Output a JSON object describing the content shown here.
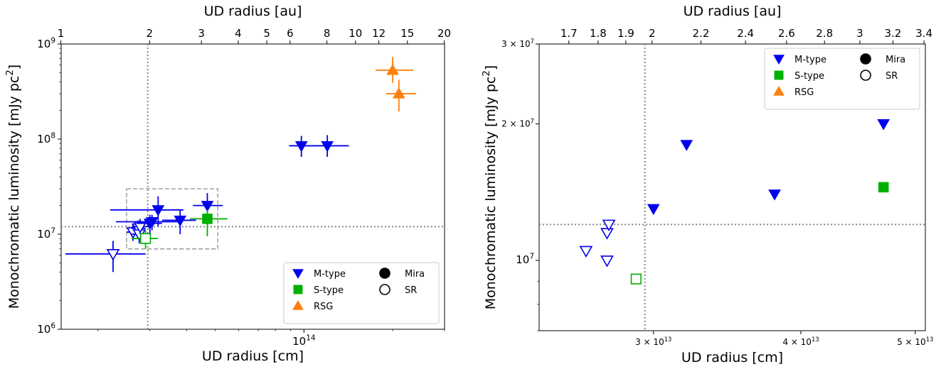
{
  "chart_data": [
    {
      "type": "scatter",
      "panel": "left",
      "xscale": "log",
      "yscale": "log",
      "xlabel": "UD radius [cm]",
      "ylabel": "Monochromatic luminosity [mJy pc",
      "ylabel_sup": "2",
      "ylabel_end": "]",
      "top_xlabel": "UD radius [au]",
      "xlim": [
        15000000000000.0,
        300000000000000.0
      ],
      "ylim": [
        1000000.0,
        1000000000.0
      ],
      "x_ticks": [
        {
          "value": 100000000000000.0,
          "base": "10",
          "exp": "14"
        }
      ],
      "y_ticks": [
        {
          "value": 1000000.0,
          "base": "10",
          "exp": "6"
        },
        {
          "value": 10000000.0,
          "base": "10",
          "exp": "7"
        },
        {
          "value": 100000000.0,
          "base": "10",
          "exp": "8"
        },
        {
          "value": 1000000000.0,
          "base": "10",
          "exp": "9"
        }
      ],
      "top_ticks": [
        {
          "au": 1,
          "label": "1"
        },
        {
          "au": 2,
          "label": "2"
        },
        {
          "au": 3,
          "label": "3"
        },
        {
          "au": 4,
          "label": "4"
        },
        {
          "au": 5,
          "label": "5"
        },
        {
          "au": 6,
          "label": "6"
        },
        {
          "au": 8,
          "label": "8"
        },
        {
          "au": 10,
          "label": "10"
        },
        {
          "au": 12,
          "label": "12"
        },
        {
          "au": 15,
          "label": "15"
        },
        {
          "au": 20,
          "label": "20"
        }
      ],
      "vline_x": 29500000000000.0,
      "hline_y": 12000000.0,
      "zoom_box": {
        "x0": 25000000000000.0,
        "x1": 51000000000000.0,
        "y0": 7000000.0,
        "y1": 30000000.0
      },
      "points": [
        {
          "cls": "M-type",
          "var": "SR",
          "x": 22500000000000.0,
          "y": 6200000.0,
          "xerr": [
            15500000000000.0,
            29000000000000.0
          ],
          "yerr": [
            4000000.0,
            8500000.0
          ]
        },
        {
          "cls": "M-type",
          "var": "SR",
          "x": 26300000000000.0,
          "y": 10500000.0,
          "xerr": [
            25000000000000.0,
            28000000000000.0
          ],
          "yerr": [
            8500000.0,
            13000000.0
          ]
        },
        {
          "cls": "M-type",
          "var": "SR",
          "x": 27400000000000.0,
          "y": 11500000.0,
          "xerr": [
            26000000000000.0,
            29000000000000.0
          ],
          "yerr": [
            9000000.0,
            14000000.0
          ]
        },
        {
          "cls": "M-type",
          "var": "SR",
          "x": 27600000000000.0,
          "y": 10000000.0,
          "xerr": [
            26000000000000.0,
            29000000000000.0
          ],
          "yerr": [
            8000000.0,
            12000000.0
          ]
        },
        {
          "cls": "M-type",
          "var": "SR",
          "x": 27800000000000.0,
          "y": 12000000.0,
          "xerr": [
            26000000000000.0,
            30000000000000.0
          ],
          "yerr": [
            10000000.0,
            14500000.0
          ]
        },
        {
          "cls": "M-type",
          "var": "Mira",
          "x": 30000000000000.0,
          "y": 13000000.0,
          "xerr": [
            27000000000000.0,
            33000000000000.0
          ],
          "yerr": [
            10000000.0,
            16000000.0
          ]
        },
        {
          "cls": "M-type",
          "var": "Mira",
          "x": 30500000000000.0,
          "y": 13500000.0,
          "xerr": [
            23000000000000.0,
            38000000000000.0
          ],
          "yerr": [
            11000000.0,
            16000000.0
          ]
        },
        {
          "cls": "M-type",
          "var": "Mira",
          "x": 32000000000000.0,
          "y": 18000000.0,
          "xerr": [
            22000000000000.0,
            39000000000000.0
          ],
          "yerr": [
            12000000.0,
            25000000.0
          ]
        },
        {
          "cls": "M-type",
          "var": "Mira",
          "x": 38000000000000.0,
          "y": 14000000.0,
          "xerr": [
            33000000000000.0,
            43000000000000.0
          ],
          "yerr": [
            10000000.0,
            18000000.0
          ]
        },
        {
          "cls": "M-type",
          "var": "Mira",
          "x": 47000000000000.0,
          "y": 20000000.0,
          "xerr": [
            42000000000000.0,
            53000000000000.0
          ],
          "yerr": [
            15000000.0,
            27000000.0
          ]
        },
        {
          "cls": "S-type",
          "var": "SR",
          "x": 29000000000000.0,
          "y": 9000000.0,
          "xerr": [
            26000000000000.0,
            32000000000000.0
          ],
          "yerr": [
            7000000.0,
            11000000.0
          ]
        },
        {
          "cls": "S-type",
          "var": "Mira",
          "x": 47000000000000.0,
          "y": 14500000.0,
          "xerr": [
            41000000000000.0,
            55000000000000.0
          ],
          "yerr": [
            9500000.0,
            18000000.0
          ]
        },
        {
          "cls": "M-type",
          "var": "Mira",
          "x": 98000000000000.0,
          "y": 85000000.0,
          "xerr": [
            89000000000000.0,
            108000000000000.0
          ],
          "yerr": [
            65000000.0,
            108000000.0
          ]
        },
        {
          "cls": "M-type",
          "var": "Mira",
          "x": 120000000000000.0,
          "y": 85000000.0,
          "xerr": [
            106000000000000.0,
            142000000000000.0
          ],
          "yerr": [
            65000000.0,
            110000000.0
          ]
        },
        {
          "cls": "RSG",
          "var": "Mira",
          "x": 200000000000000.0,
          "y": 530000000.0,
          "xerr": [
            175000000000000.0,
            235000000000000.0
          ],
          "yerr": [
            390000000.0,
            730000000.0
          ]
        },
        {
          "cls": "RSG",
          "var": "Mira",
          "x": 210000000000000.0,
          "y": 300000000.0,
          "xerr": [
            190000000000000.0,
            240000000000000.0
          ],
          "yerr": [
            195000000.0,
            420000000.0
          ]
        }
      ]
    },
    {
      "type": "scatter",
      "panel": "right",
      "xscale": "log",
      "yscale": "log",
      "xlabel": "UD radius [cm]",
      "ylabel": "Monochromatic luminosity [mJy pc",
      "ylabel_sup": "2",
      "ylabel_end": "]",
      "top_xlabel": "UD radius [au]",
      "xlim": [
        24000000000000.0,
        51000000000000.0
      ],
      "ylim": [
        7000000.0,
        30000000.0
      ],
      "x_ticks": [
        {
          "value": 30000000000000.0,
          "pre": "3 × 10",
          "exp": "13"
        },
        {
          "value": 40000000000000.0,
          "pre": "4 × 10",
          "exp": "13"
        },
        {
          "value": 50000000000000.0,
          "pre": "5 × 10",
          "exp": "13"
        }
      ],
      "y_ticks": [
        {
          "value": 10000000.0,
          "pre": "10",
          "exp": "7",
          "big": true
        },
        {
          "value": 20000000.0,
          "pre": "2 × 10",
          "exp": "7"
        },
        {
          "value": 30000000.0,
          "pre": "3 × 10",
          "exp": "7"
        }
      ],
      "top_ticks": [
        {
          "au": 1.7,
          "label": "1.7"
        },
        {
          "au": 1.8,
          "label": "1.8"
        },
        {
          "au": 1.9,
          "label": "1.9"
        },
        {
          "au": 2.0,
          "label": "2"
        },
        {
          "au": 2.2,
          "label": "2.2"
        },
        {
          "au": 2.4,
          "label": "2.4"
        },
        {
          "au": 2.6,
          "label": "2.6"
        },
        {
          "au": 2.8,
          "label": "2.8"
        },
        {
          "au": 3.0,
          "label": "3"
        },
        {
          "au": 3.2,
          "label": "3.2"
        },
        {
          "au": 3.4,
          "label": "3.4"
        }
      ],
      "vline_x": 29500000000000.0,
      "hline_y": 12000000.0,
      "points": [
        {
          "cls": "M-type",
          "var": "SR",
          "x": 26300000000000.0,
          "y": 10500000.0
        },
        {
          "cls": "M-type",
          "var": "SR",
          "x": 27400000000000.0,
          "y": 11500000.0
        },
        {
          "cls": "M-type",
          "var": "SR",
          "x": 27500000000000.0,
          "y": 12000000.0
        },
        {
          "cls": "M-type",
          "var": "SR",
          "x": 27400000000000.0,
          "y": 10000000.0
        },
        {
          "cls": "S-type",
          "var": "SR",
          "x": 29000000000000.0,
          "y": 9100000.0
        },
        {
          "cls": "M-type",
          "var": "Mira",
          "x": 30000000000000.0,
          "y": 13000000.0
        },
        {
          "cls": "M-type",
          "var": "Mira",
          "x": 32000000000000.0,
          "y": 18000000.0
        },
        {
          "cls": "M-type",
          "var": "Mira",
          "x": 38000000000000.0,
          "y": 14000000.0
        },
        {
          "cls": "M-type",
          "var": "Mira",
          "x": 47000000000000.0,
          "y": 20000000.0
        },
        {
          "cls": "S-type",
          "var": "Mira",
          "x": 47000000000000.0,
          "y": 14500000.0
        }
      ]
    }
  ],
  "legend": {
    "placement_left": "lower-right",
    "placement_right": "upper-right",
    "classes": [
      {
        "label": "M-type",
        "marker": "triangle-down",
        "color": "#0000ee"
      },
      {
        "label": "S-type",
        "marker": "square",
        "color": "#00b000"
      },
      {
        "label": "RSG",
        "marker": "triangle-up",
        "color": "#ff7f0e"
      }
    ],
    "variability": [
      {
        "label": "Mira",
        "fill": "filled"
      },
      {
        "label": "SR",
        "fill": "open"
      }
    ]
  },
  "colors": {
    "M-type": "#0000ee",
    "S-type": "#00b000",
    "RSG": "#ff7f0e",
    "guide_line": "#888888",
    "zoom_box": "#999999"
  },
  "au_cm": 14960000000000.0
}
